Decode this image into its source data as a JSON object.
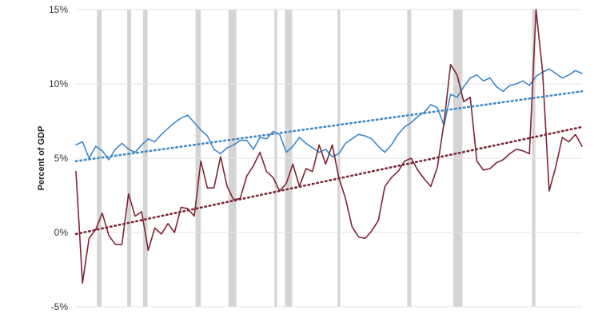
{
  "chart_data": {
    "type": "line",
    "ylabel": "Percent of GDP",
    "ylim": [
      -5,
      15
    ],
    "xlim": [
      1947,
      2024
    ],
    "y_ticks": [
      -5,
      0,
      5,
      10,
      15
    ],
    "y_tick_labels": [
      "-5%",
      "0%",
      "5%",
      "10%",
      "15%"
    ],
    "recessions": [
      [
        1950.2,
        1950.9
      ],
      [
        1954.8,
        1955.4
      ],
      [
        1957.2,
        1957.9
      ],
      [
        1965.2,
        1966.0
      ],
      [
        1970.2,
        1971.4
      ],
      [
        1977.2,
        1977.6
      ],
      [
        1978.8,
        1979.9
      ],
      [
        1986.8,
        1987.2
      ],
      [
        1997.4,
        1998.0
      ],
      [
        2004.4,
        2005.8
      ],
      [
        2016.4,
        2016.9
      ]
    ],
    "series": [
      {
        "color": "#3d88c7",
        "x": [
          1947,
          1948,
          1949,
          1950,
          1951,
          1952,
          1953,
          1954,
          1955,
          1956,
          1957,
          1958,
          1959,
          1960,
          1961,
          1962,
          1963,
          1964,
          1965,
          1966,
          1967,
          1968,
          1969,
          1970,
          1971,
          1972,
          1973,
          1974,
          1975,
          1976,
          1977,
          1978,
          1979,
          1980,
          1981,
          1982,
          1983,
          1984,
          1985,
          1986,
          1987,
          1988,
          1989,
          1990,
          1991,
          1992,
          1993,
          1994,
          1995,
          1996,
          1997,
          1998,
          1999,
          2000,
          2001,
          2002,
          2003,
          2004,
          2005,
          2006,
          2007,
          2008,
          2009,
          2010,
          2011,
          2012,
          2013,
          2014,
          2015,
          2016,
          2017,
          2018,
          2019,
          2020,
          2021,
          2022,
          2023,
          2024
        ],
        "values": [
          5.9,
          6.1,
          5.0,
          5.8,
          5.5,
          4.9,
          5.6,
          6.0,
          5.6,
          5.4,
          5.9,
          6.3,
          6.1,
          6.6,
          7.0,
          7.4,
          7.7,
          7.9,
          7.4,
          6.9,
          6.5,
          5.6,
          5.3,
          5.7,
          5.9,
          6.2,
          6.2,
          5.6,
          6.4,
          6.3,
          6.8,
          6.6,
          5.4,
          5.8,
          6.4,
          6.0,
          5.7,
          5.4,
          5.6,
          5.1,
          5.3,
          6.0,
          6.3,
          6.6,
          6.5,
          6.3,
          5.8,
          5.4,
          5.9,
          6.6,
          7.1,
          7.4,
          7.8,
          8.1,
          8.6,
          8.4,
          7.2,
          9.3,
          9.1,
          9.8,
          10.4,
          10.6,
          10.2,
          10.4,
          9.8,
          9.5,
          9.9,
          10.0,
          10.2,
          9.9,
          10.5,
          10.8,
          11.0,
          10.7,
          10.4,
          10.6,
          10.9,
          10.7
        ]
      },
      {
        "color": "#7d2434",
        "x": [
          1947,
          1948,
          1949,
          1950,
          1951,
          1952,
          1953,
          1954,
          1955,
          1956,
          1957,
          1958,
          1959,
          1960,
          1961,
          1962,
          1963,
          1964,
          1965,
          1966,
          1967,
          1968,
          1969,
          1970,
          1971,
          1972,
          1973,
          1974,
          1975,
          1976,
          1977,
          1978,
          1979,
          1980,
          1981,
          1982,
          1983,
          1984,
          1985,
          1986,
          1987,
          1988,
          1989,
          1990,
          1991,
          1992,
          1993,
          1994,
          1995,
          1996,
          1997,
          1998,
          1999,
          2000,
          2001,
          2002,
          2003,
          2004,
          2005,
          2006,
          2007,
          2008,
          2009,
          2010,
          2011,
          2012,
          2013,
          2014,
          2015,
          2016,
          2017,
          2018,
          2019,
          2020,
          2021,
          2022,
          2023,
          2024
        ],
        "values": [
          4.1,
          -3.4,
          -0.4,
          0.2,
          1.3,
          -0.2,
          -0.8,
          -0.8,
          2.6,
          1.1,
          1.4,
          -1.2,
          0.3,
          -0.1,
          0.6,
          0.0,
          1.7,
          1.6,
          1.1,
          4.8,
          3.0,
          3.0,
          5.1,
          3.1,
          2.2,
          2.3,
          3.8,
          4.5,
          5.4,
          4.1,
          3.7,
          2.8,
          3.3,
          4.6,
          3.1,
          4.3,
          4.1,
          5.9,
          4.6,
          5.9,
          3.7,
          2.3,
          0.4,
          -0.3,
          -0.4,
          0.1,
          0.8,
          3.1,
          3.7,
          4.1,
          4.8,
          5.0,
          4.2,
          3.6,
          3.1,
          4.4,
          7.4,
          11.3,
          10.6,
          8.8,
          9.1,
          4.8,
          4.2,
          4.3,
          4.7,
          4.9,
          5.3,
          5.6,
          5.5,
          5.3,
          16.0,
          10.8,
          2.8,
          4.4,
          6.4,
          6.1,
          6.6,
          5.8
        ]
      },
      {
        "color": "#3d88c7",
        "x": [
          1947,
          2024
        ],
        "values": [
          4.8,
          9.5
        ]
      },
      {
        "color": "#7d2434",
        "x": [
          1947,
          2024
        ],
        "values": [
          -0.1,
          7.1
        ]
      }
    ]
  }
}
